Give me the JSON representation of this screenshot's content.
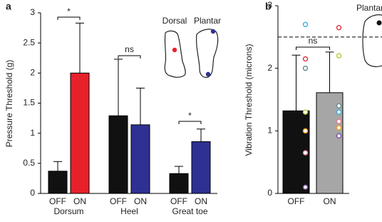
{
  "chart_data": [
    {
      "type": "bar",
      "panel_label": "a",
      "ylabel": "Pressure Threshold (g)",
      "ylim": [
        0,
        3
      ],
      "yticks": [
        0,
        0.5,
        1,
        1.5,
        2,
        2.5,
        3
      ],
      "categories": [
        "Dorsum",
        "Heel",
        "Great toe"
      ],
      "series": [
        {
          "name": "OFF",
          "colors": [
            "#111111",
            "#111111",
            "#111111"
          ],
          "values": [
            0.37,
            1.29,
            0.33
          ],
          "errors": [
            0.16,
            0.94,
            0.12
          ]
        },
        {
          "name": "ON",
          "colors": [
            "#e8202a",
            "#2e3192",
            "#2e3192"
          ],
          "values": [
            2.0,
            1.14,
            0.86
          ],
          "errors": [
            0.83,
            0.61,
            0.21
          ]
        }
      ],
      "annotations": [
        "*",
        "ns",
        "*"
      ],
      "inset_labels": [
        "Dorsal",
        "Plantar"
      ]
    },
    {
      "type": "bar",
      "panel_label": "b",
      "ylabel": "Vibration Threshold (microns)",
      "ylim": [
        0,
        3
      ],
      "yticks": [
        0,
        1,
        2,
        3
      ],
      "categories": [
        "OFF",
        "ON"
      ],
      "values": [
        1.32,
        1.61
      ],
      "errors": [
        0.89,
        0.65
      ],
      "colors": [
        "#111111",
        "#a6a6a6"
      ],
      "reference_line": 2.5,
      "points": [
        {
          "color": "#3ab0d8",
          "values": [
            2.7,
            1.3
          ]
        },
        {
          "color": "#e0313b",
          "values": [
            2.15,
            2.65
          ]
        },
        {
          "color": "#5f8c8c",
          "values": [
            2.0,
            1.4
          ]
        },
        {
          "color": "#b7c93a",
          "values": [
            1.3,
            2.2
          ]
        },
        {
          "color": "#f0a020",
          "values": [
            1.0,
            1.05
          ]
        },
        {
          "color": "#e67c8a",
          "values": [
            0.65,
            1.15
          ]
        },
        {
          "color": "#7a4fa0",
          "values": [
            0.1,
            0.92
          ]
        }
      ],
      "annotations": [
        "ns"
      ],
      "inset_labels": [
        "Plantar"
      ]
    }
  ]
}
